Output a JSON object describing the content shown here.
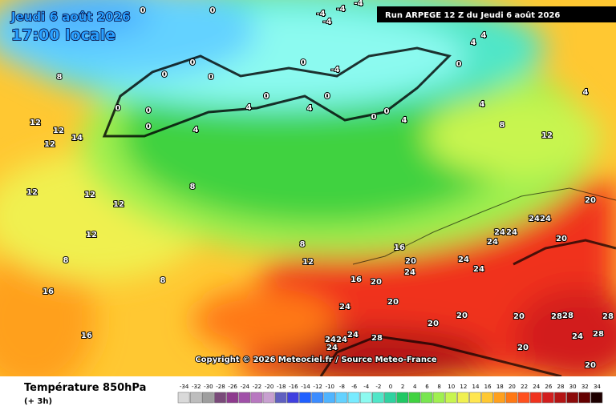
{
  "header": {
    "date": "Jeudi 6 août 2026",
    "time": "17:00 locale",
    "run": "Run ARPEGE 12 Z du Jeudi 6 août 2026"
  },
  "copyright": "Copyright © 2026 Meteociel.fr / Source Meteo-France",
  "footer": {
    "title": "Température 850hPa",
    "step": "(+ 3h)"
  },
  "legend": {
    "values": [
      "-34",
      "-32",
      "-30",
      "-28",
      "-26",
      "-24",
      "-22",
      "-20",
      "-18",
      "-16",
      "-14",
      "-12",
      "-10",
      "-8",
      "-6",
      "-4",
      "-2",
      "0",
      "2",
      "4",
      "6",
      "8",
      "10",
      "12",
      "14",
      "16",
      "18",
      "20",
      "22",
      "24",
      "26",
      "28",
      "30",
      "32",
      "34"
    ],
    "colors": [
      "#d9d9d9",
      "#bdbdbd",
      "#9e9e9e",
      "#7a4a7a",
      "#8e3a8e",
      "#a050a8",
      "#b878c0",
      "#c8a0d0",
      "#6060c0",
      "#4040e0",
      "#2060ff",
      "#3c8cff",
      "#50b4ff",
      "#64d2ff",
      "#78ebff",
      "#8cfaf0",
      "#50e6c8",
      "#30d2a0",
      "#20c864",
      "#40d240",
      "#78e650",
      "#a0f050",
      "#c8f550",
      "#f0f050",
      "#ffe650",
      "#ffc832",
      "#ffa01e",
      "#ff7814",
      "#ff501e",
      "#f0321e",
      "#d21e1e",
      "#b41414",
      "#8c0a0a",
      "#640000",
      "#1e0000"
    ]
  },
  "isotherm_labels": [
    "0",
    "-4",
    "-4",
    "-4",
    "0",
    "-4",
    "0",
    "-4",
    "0",
    "0",
    "0",
    "0",
    "0",
    "0",
    "0",
    "0",
    "0",
    "0",
    "0",
    "4",
    "4",
    "4",
    "4",
    "4",
    "4",
    "4",
    "4",
    "8",
    "8",
    "8",
    "8",
    "8",
    "8",
    "12",
    "12",
    "12",
    "14",
    "12",
    "12",
    "12",
    "12",
    "12",
    "12",
    "16",
    "16",
    "16",
    "16",
    "20",
    "20",
    "20",
    "20",
    "20",
    "20",
    "20",
    "20",
    "20",
    "24",
    "24",
    "24",
    "24",
    "24",
    "24",
    "24",
    "24",
    "24",
    "24",
    "24",
    "24",
    "24",
    "28",
    "28",
    "28",
    "28",
    "24",
    "28",
    "20"
  ]
}
